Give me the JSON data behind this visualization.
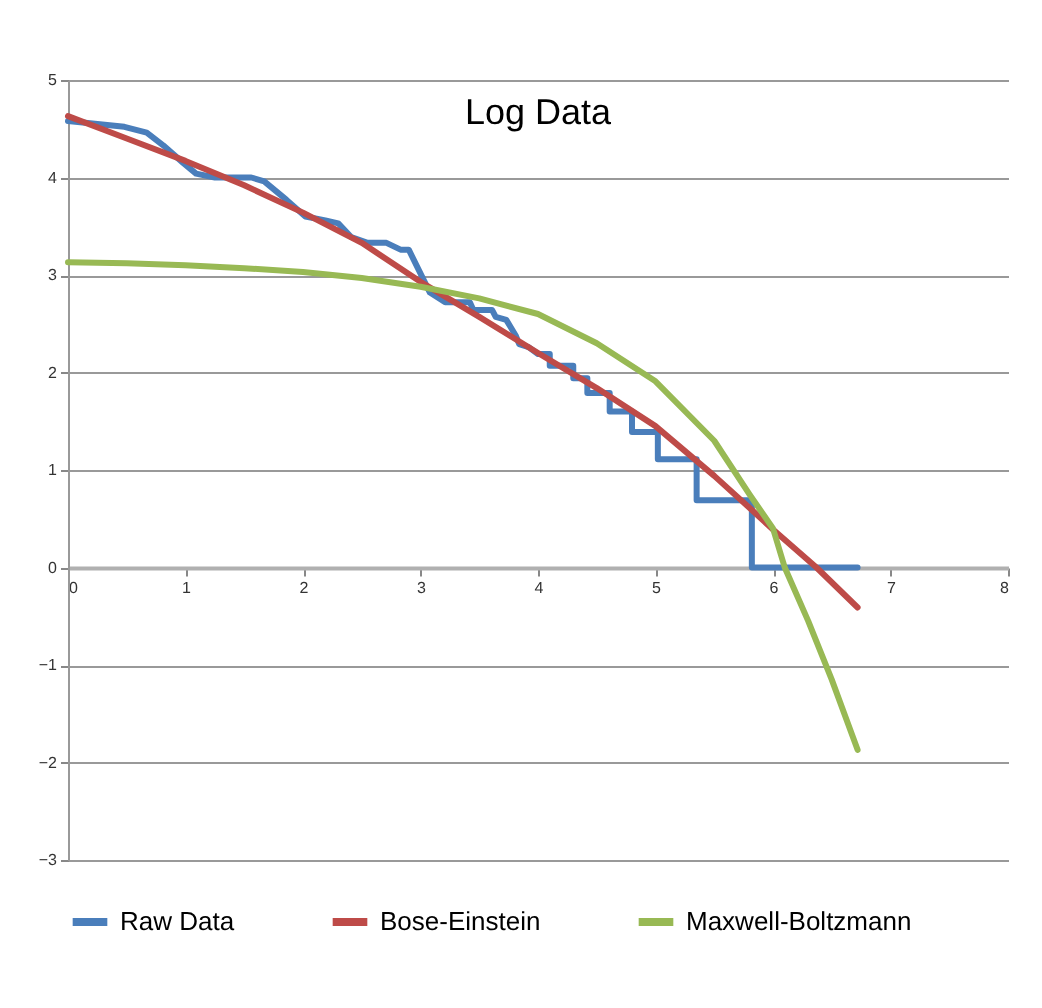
{
  "chart_data": {
    "type": "line",
    "title": "Log Data",
    "xlim": [
      0,
      8
    ],
    "xticks": [
      0,
      1,
      2,
      3,
      4,
      5,
      6,
      7,
      8
    ],
    "ylim": [
      -3,
      5
    ],
    "yticks": [
      -3,
      -2,
      -1,
      0,
      1,
      2,
      3,
      4,
      5
    ],
    "grid": "y",
    "legend": "bottom",
    "series": [
      {
        "name": "Raw Data",
        "color": "#4a7ebb",
        "x": [
          0,
          0.48,
          0.67,
          0.81,
          0.98,
          1.09,
          1.25,
          1.56,
          1.67,
          1.86,
          2.02,
          2.19,
          2.3,
          2.41,
          2.55,
          2.71,
          2.83,
          2.9,
          2.99,
          3.08,
          3.21,
          3.42,
          3.45,
          3.61,
          3.64,
          3.73,
          3.81,
          3.84,
          3.92,
          4.0,
          4.1,
          4.1,
          4.3,
          4.3,
          4.42,
          4.42,
          4.61,
          4.61,
          4.8,
          4.8,
          5.02,
          5.02,
          5.35,
          5.35,
          5.82,
          5.82,
          6.72
        ],
        "values": [
          4.58,
          4.52,
          4.46,
          4.33,
          4.15,
          4.04,
          4.0,
          4.0,
          3.96,
          3.77,
          3.6,
          3.56,
          3.53,
          3.39,
          3.33,
          3.33,
          3.26,
          3.26,
          3.04,
          2.82,
          2.72,
          2.72,
          2.64,
          2.64,
          2.57,
          2.54,
          2.38,
          2.29,
          2.26,
          2.19,
          2.19,
          2.07,
          2.07,
          1.94,
          1.94,
          1.79,
          1.79,
          1.6,
          1.6,
          1.39,
          1.39,
          1.11,
          1.11,
          0.69,
          0.69,
          0,
          0
        ]
      },
      {
        "name": "Bose-Einstein",
        "color": "#be4b48",
        "x": [
          0,
          0.5,
          1,
          1.5,
          2,
          2.5,
          3,
          3.5,
          4,
          4.5,
          5,
          5.5,
          5.82,
          6,
          6.37,
          6.72
        ],
        "values": [
          4.63,
          4.4,
          4.17,
          3.92,
          3.64,
          3.33,
          2.93,
          2.57,
          2.2,
          1.84,
          1.45,
          0.94,
          0.59,
          0.39,
          0,
          -0.41
        ]
      },
      {
        "name": "Maxwell-Boltzmann",
        "color": "#98b954",
        "x": [
          0,
          0.5,
          1,
          1.5,
          2,
          2.5,
          3,
          3.5,
          4,
          4.5,
          5,
          5.5,
          5.8,
          6,
          6.1,
          6.3,
          6.5,
          6.72
        ],
        "values": [
          3.13,
          3.12,
          3.1,
          3.07,
          3.03,
          2.97,
          2.88,
          2.76,
          2.6,
          2.3,
          1.91,
          1.3,
          0.75,
          0.4,
          0,
          -0.55,
          -1.15,
          -1.87
        ]
      }
    ]
  }
}
